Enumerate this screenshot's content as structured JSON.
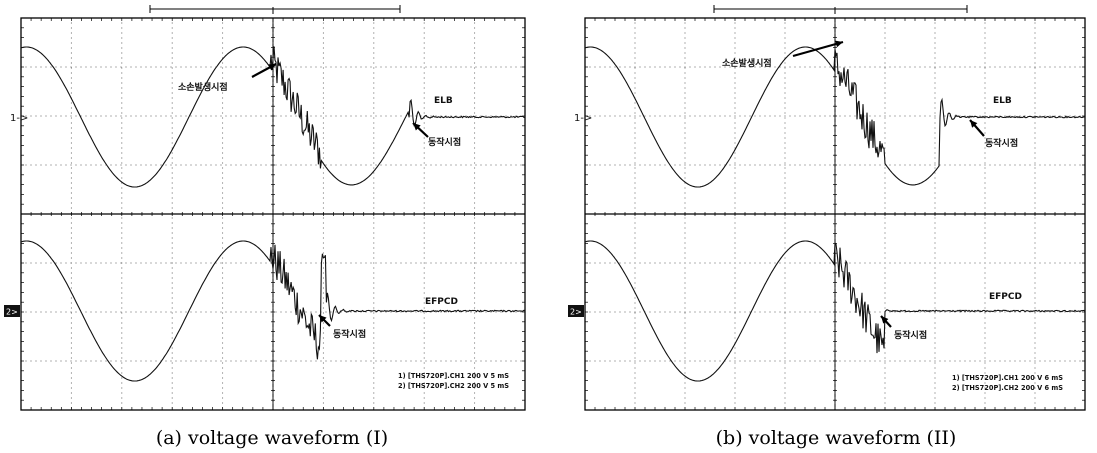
{
  "panels": [
    {
      "id": "a",
      "caption": "(a) voltage waveform (I)",
      "ch1_marker": "1->",
      "ch2_marker": "2>",
      "label_damage": "소손발생시점",
      "label_elb": "ELB",
      "label_elb_trip": "동작시점",
      "label_efpcd": "EFPCD",
      "label_efpcd_trip": "동작시점",
      "footnote": [
        "1) [THS720P].CH1  200  V   5 mS",
        "2) [THS720P].CH2  200  V   5 mS"
      ],
      "waveform": {
        "burst_start": 0.495,
        "ch1_trip": 0.77,
        "ch2_trip": 0.605
      }
    },
    {
      "id": "b",
      "caption": "(b) voltage waveform (II)",
      "ch1_marker": "1->",
      "ch2_marker": "2>",
      "label_damage": "소손발생시점",
      "label_elb": "ELB",
      "label_elb_trip": "동작시점",
      "label_efpcd": "EFPCD",
      "label_efpcd_trip": "동작시점",
      "footnote": [
        "1) [THS720P].CH1  200  V   6 mS",
        "2) [THS720P].CH2  200  V   6 mS"
      ],
      "waveform": {
        "burst_start": 0.5,
        "ch1_trip": 0.71,
        "ch2_trip": 0.57
      }
    }
  ]
}
